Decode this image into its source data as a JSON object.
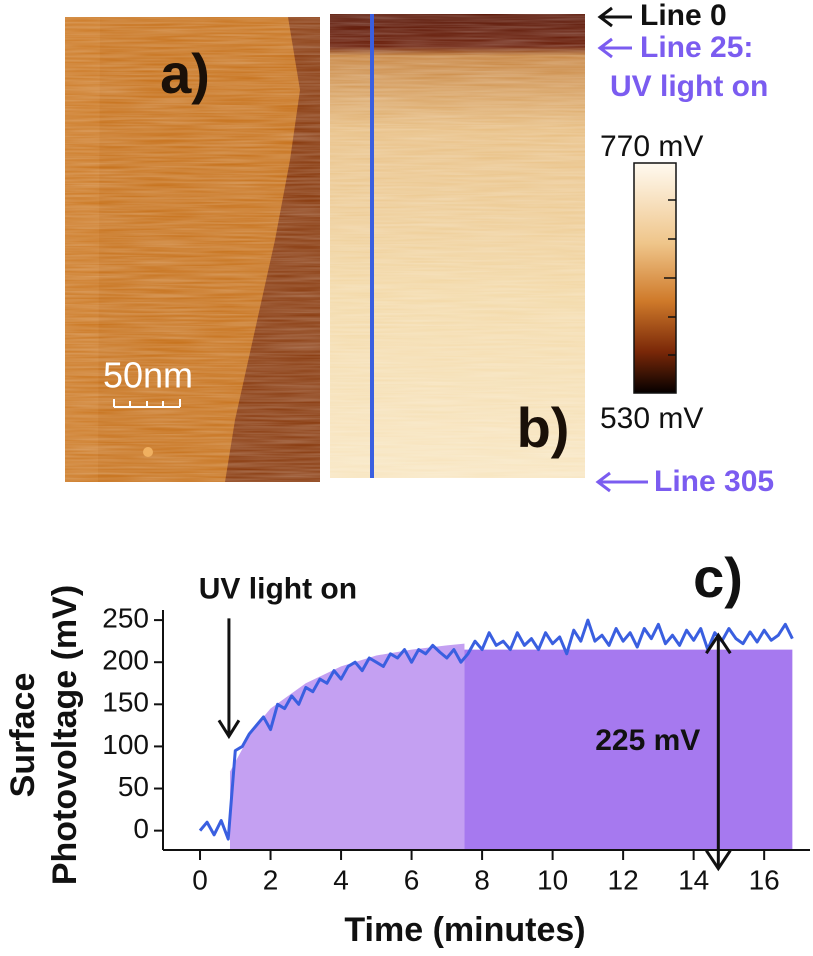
{
  "images": {
    "a_label": "a)",
    "scale_bar": "50nm",
    "b_label": "b)",
    "line_0": "Line 0",
    "line_25": "Line 25:",
    "uv_on": "UV light on",
    "line_305": "Line 305",
    "cbar_max": "770 mV",
    "cbar_min": "530 mV"
  },
  "chart_data": {
    "type": "line",
    "panel_label": "c)",
    "xlabel": "Time (minutes)",
    "ylabel": [
      "Surface",
      "Photovoltage (mV)"
    ],
    "x": [
      0,
      0.2,
      0.4,
      0.6,
      0.8,
      1.0,
      1.2,
      1.4,
      1.6,
      1.8,
      2.0,
      2.2,
      2.4,
      2.6,
      2.8,
      3.0,
      3.2,
      3.4,
      3.6,
      3.8,
      4.0,
      4.2,
      4.4,
      4.6,
      4.8,
      5.0,
      5.2,
      5.4,
      5.6,
      5.8,
      6.0,
      6.2,
      6.4,
      6.6,
      6.8,
      7.0,
      7.2,
      7.4,
      7.6,
      7.8,
      8.0,
      8.2,
      8.4,
      8.6,
      8.8,
      9.0,
      9.2,
      9.4,
      9.6,
      9.8,
      10.0,
      10.2,
      10.4,
      10.6,
      10.8,
      11.0,
      11.2,
      11.4,
      11.6,
      11.8,
      12.0,
      12.2,
      12.4,
      12.6,
      12.8,
      13.0,
      13.2,
      13.4,
      13.6,
      13.8,
      14.0,
      14.2,
      14.4,
      14.6,
      14.8,
      15.0,
      15.2,
      15.4,
      15.6,
      15.8,
      16.0,
      16.2,
      16.4,
      16.6,
      16.8
    ],
    "series": [
      {
        "color": "#3a5fe0",
        "values": [
          0,
          10,
          -5,
          12,
          -10,
          95,
          100,
          115,
          125,
          135,
          120,
          150,
          145,
          160,
          150,
          170,
          165,
          180,
          175,
          190,
          180,
          195,
          200,
          190,
          205,
          200,
          195,
          210,
          205,
          215,
          200,
          215,
          210,
          220,
          212,
          205,
          215,
          200,
          210,
          225,
          215,
          235,
          220,
          225,
          215,
          235,
          220,
          228,
          215,
          235,
          222,
          230,
          210,
          238,
          225,
          250,
          225,
          232,
          220,
          240,
          225,
          235,
          218,
          240,
          228,
          245,
          222,
          232,
          220,
          238,
          226,
          240,
          215,
          235,
          225,
          240,
          228,
          222,
          236,
          224,
          238,
          226,
          232,
          245,
          228
        ]
      }
    ],
    "shaded_areas": [
      {
        "color": "#c4a0f2",
        "x": [
          0.85,
          1.5,
          2,
          3,
          4,
          5,
          6,
          7,
          7.5
        ],
        "values": [
          70,
          120,
          145,
          175,
          195,
          208,
          215,
          220,
          222
        ]
      },
      {
        "color": "#a679ef",
        "x": [
          7.5,
          16.8
        ],
        "values": [
          215,
          215
        ]
      }
    ],
    "annotations": [
      {
        "text": "UV light on",
        "x": 0.82,
        "y_from": 252,
        "y_to": 112
      },
      {
        "text": "225 mV",
        "x": 14.7,
        "y_from": -45,
        "y_to": 232
      }
    ],
    "xlim": [
      -1.05,
      17.3
    ],
    "ylim": [
      -23,
      262
    ],
    "xticks": [
      0,
      2,
      4,
      6,
      8,
      10,
      12,
      14,
      16
    ],
    "yticks": [
      0,
      50,
      100,
      150,
      200,
      250
    ]
  }
}
